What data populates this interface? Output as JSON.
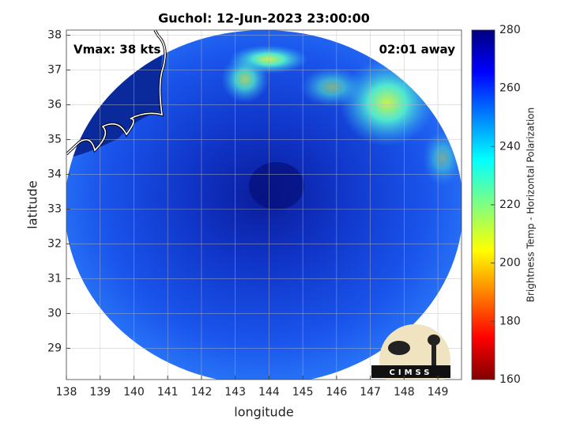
{
  "title": "Guchol: 12-Jun-2023 23:00:00",
  "annotations": {
    "vmax": "Vmax: 38 kts",
    "away": "02:01 away"
  },
  "axes": {
    "xlabel": "longitude",
    "ylabel": "latitude",
    "xlim": [
      138,
      149.7
    ],
    "ylim": [
      28.1,
      38.15
    ],
    "xticks": [
      138,
      139,
      140,
      141,
      142,
      143,
      144,
      145,
      146,
      147,
      148,
      149
    ],
    "yticks": [
      29,
      30,
      31,
      32,
      33,
      34,
      35,
      36,
      37,
      38
    ],
    "grid": true
  },
  "colorbar": {
    "label": "Brightness Temp - Horizontal Polarization",
    "lim": [
      160,
      280
    ],
    "ticks": [
      160,
      180,
      200,
      220,
      240,
      260,
      280
    ]
  },
  "logo": "CIMSS"
}
